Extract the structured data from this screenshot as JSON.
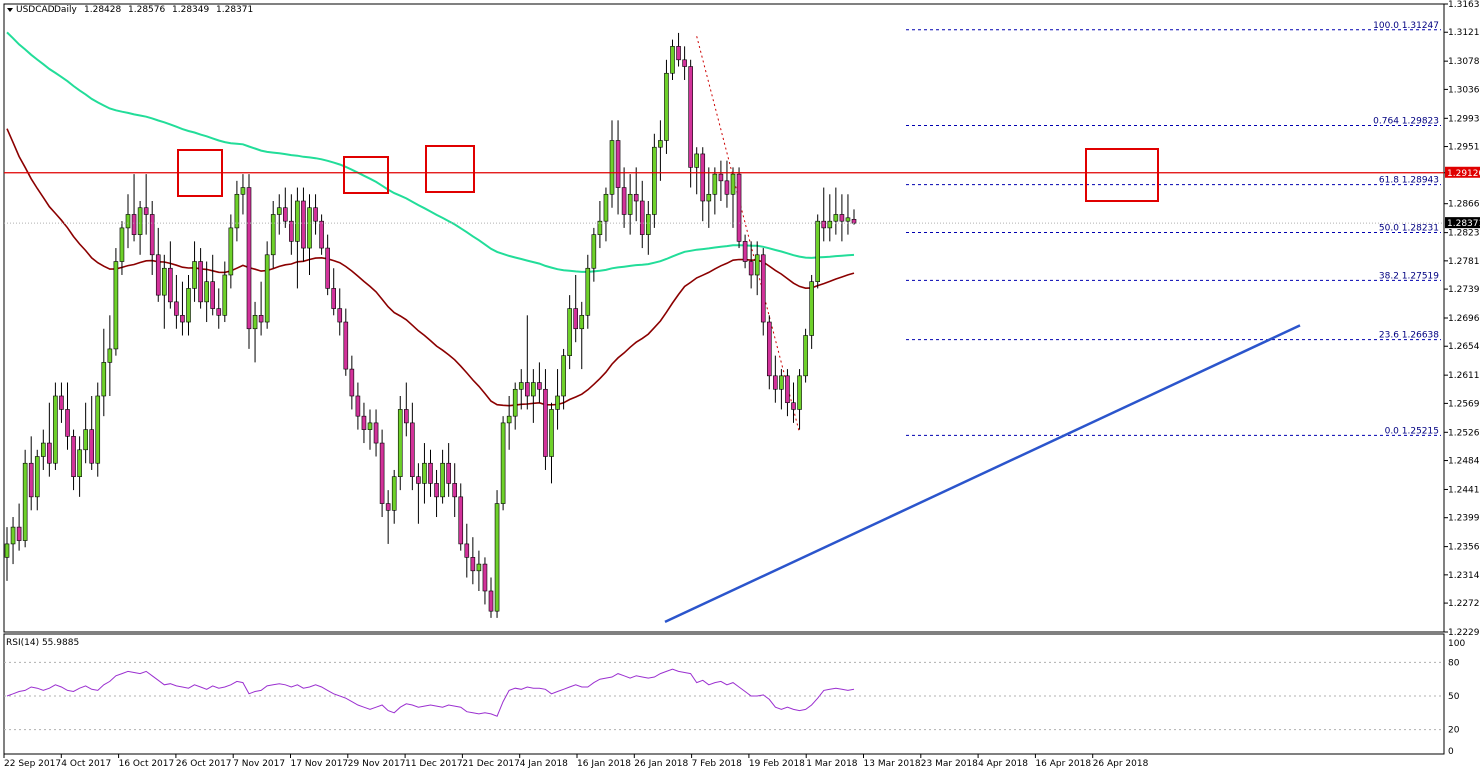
{
  "chart_data": {
    "type": "candlestick",
    "symbol": "USDCAD",
    "timeframe": "Daily",
    "header": {
      "open": "1.28428",
      "high": "1.28576",
      "low": "1.28349",
      "close": "1.28371"
    },
    "current_price_label": "1.28371",
    "resistance_label": "1.29120",
    "ylim": [
      1.2229,
      1.3163
    ],
    "y_ticks": [
      "1.31630",
      "1.31210",
      "1.30780",
      "1.30360",
      "1.29930",
      "1.29510",
      "1.29120",
      "1.28660",
      "1.28230",
      "1.27810",
      "1.27390",
      "1.26960",
      "1.26540",
      "1.26110",
      "1.25690",
      "1.25260",
      "1.24840",
      "1.24410",
      "1.23990",
      "1.23560",
      "1.23140",
      "1.22720",
      "1.22290"
    ],
    "x_ticks": [
      "22 Sep 2017",
      "4 Oct 2017",
      "16 Oct 2017",
      "26 Oct 2017",
      "7 Nov 2017",
      "17 Nov 2017",
      "29 Nov 2017",
      "11 Dec 2017",
      "21 Dec 2017",
      "4 Jan 2018",
      "16 Jan 2018",
      "26 Jan 2018",
      "7 Feb 2018",
      "19 Feb 2018",
      "1 Mar 2018",
      "13 Mar 2018",
      "23 Mar 2018",
      "4 Apr 2018",
      "16 Apr 2018",
      "26 Apr 2018"
    ],
    "fibonacci": [
      {
        "label": "100.0 1.31247",
        "value": 1.31247
      },
      {
        "label": "0.764 1.29823",
        "value": 1.29823
      },
      {
        "label": "61.8 1.28943",
        "value": 1.28943
      },
      {
        "label": "50.0 1.28231",
        "value": 1.28231
      },
      {
        "label": "38.2 1.27519",
        "value": 1.27519
      },
      {
        "label": "23.6 1.26638",
        "value": 1.26638
      },
      {
        "label": "0.0 1.25215",
        "value": 1.25215
      }
    ],
    "resistance": 1.2912,
    "current_price": 1.28371,
    "trendline": {
      "from": [
        0,
        1.2244
      ],
      "to": [
        128,
        1.2685
      ]
    },
    "fib_swing": {
      "from": [
        114,
        1.3115
      ],
      "to": [
        131,
        1.2525
      ]
    },
    "candles": [
      [
        1.234,
        1.2385,
        1.2305,
        1.236
      ],
      [
        1.236,
        1.24,
        1.233,
        1.2385
      ],
      [
        1.2385,
        1.242,
        1.235,
        1.2365
      ],
      [
        1.2365,
        1.25,
        1.2355,
        1.248
      ],
      [
        1.248,
        1.252,
        1.241,
        1.243
      ],
      [
        1.243,
        1.25,
        1.241,
        1.249
      ],
      [
        1.249,
        1.253,
        1.247,
        1.251
      ],
      [
        1.251,
        1.257,
        1.246,
        1.248
      ],
      [
        1.248,
        1.26,
        1.247,
        1.258
      ],
      [
        1.258,
        1.26,
        1.254,
        1.256
      ],
      [
        1.256,
        1.26,
        1.25,
        1.252
      ],
      [
        1.252,
        1.253,
        1.244,
        1.246
      ],
      [
        1.246,
        1.252,
        1.243,
        1.25
      ],
      [
        1.25,
        1.257,
        1.248,
        1.253
      ],
      [
        1.253,
        1.258,
        1.247,
        1.248
      ],
      [
        1.248,
        1.26,
        1.246,
        1.258
      ],
      [
        1.258,
        1.268,
        1.255,
        1.263
      ],
      [
        1.263,
        1.27,
        1.258,
        1.265
      ],
      [
        1.265,
        1.28,
        1.264,
        1.278
      ],
      [
        1.278,
        1.284,
        1.276,
        1.283
      ],
      [
        1.283,
        1.288,
        1.28,
        1.285
      ],
      [
        1.285,
        1.291,
        1.281,
        1.282
      ],
      [
        1.282,
        1.287,
        1.279,
        1.286
      ],
      [
        1.286,
        1.291,
        1.282,
        1.285
      ],
      [
        1.285,
        1.287,
        1.276,
        1.279
      ],
      [
        1.279,
        1.283,
        1.272,
        1.273
      ],
      [
        1.273,
        1.279,
        1.268,
        1.277
      ],
      [
        1.277,
        1.281,
        1.271,
        1.272
      ],
      [
        1.272,
        1.276,
        1.268,
        1.27
      ],
      [
        1.27,
        1.275,
        1.267,
        1.269
      ],
      [
        1.269,
        1.276,
        1.267,
        1.274
      ],
      [
        1.274,
        1.281,
        1.272,
        1.278
      ],
      [
        1.278,
        1.28,
        1.271,
        1.272
      ],
      [
        1.272,
        1.278,
        1.269,
        1.275
      ],
      [
        1.275,
        1.279,
        1.27,
        1.271
      ],
      [
        1.271,
        1.274,
        1.268,
        1.27
      ],
      [
        1.27,
        1.278,
        1.269,
        1.276
      ],
      [
        1.276,
        1.285,
        1.274,
        1.283
      ],
      [
        1.283,
        1.29,
        1.281,
        1.288
      ],
      [
        1.288,
        1.291,
        1.285,
        1.289
      ],
      [
        1.289,
        1.291,
        1.265,
        1.268
      ],
      [
        1.268,
        1.272,
        1.263,
        1.27
      ],
      [
        1.27,
        1.275,
        1.267,
        1.269
      ],
      [
        1.269,
        1.281,
        1.268,
        1.279
      ],
      [
        1.279,
        1.287,
        1.277,
        1.285
      ],
      [
        1.285,
        1.288,
        1.282,
        1.286
      ],
      [
        1.286,
        1.289,
        1.283,
        1.284
      ],
      [
        1.284,
        1.288,
        1.279,
        1.281
      ],
      [
        1.281,
        1.289,
        1.274,
        1.287
      ],
      [
        1.287,
        1.289,
        1.278,
        1.28
      ],
      [
        1.28,
        1.288,
        1.276,
        1.286
      ],
      [
        1.286,
        1.288,
        1.282,
        1.284
      ],
      [
        1.284,
        1.285,
        1.279,
        1.28
      ],
      [
        1.28,
        1.282,
        1.273,
        1.274
      ],
      [
        1.274,
        1.277,
        1.27,
        1.271
      ],
      [
        1.271,
        1.274,
        1.267,
        1.269
      ],
      [
        1.269,
        1.271,
        1.261,
        1.262
      ],
      [
        1.262,
        1.264,
        1.256,
        1.258
      ],
      [
        1.258,
        1.26,
        1.253,
        1.255
      ],
      [
        1.255,
        1.257,
        1.251,
        1.253
      ],
      [
        1.253,
        1.256,
        1.25,
        1.254
      ],
      [
        1.254,
        1.256,
        1.249,
        1.251
      ],
      [
        1.251,
        1.253,
        1.24,
        1.242
      ],
      [
        1.242,
        1.244,
        1.236,
        1.241
      ],
      [
        1.241,
        1.247,
        1.239,
        1.246
      ],
      [
        1.246,
        1.258,
        1.244,
        1.256
      ],
      [
        1.256,
        1.26,
        1.252,
        1.254
      ],
      [
        1.254,
        1.257,
        1.244,
        1.246
      ],
      [
        1.246,
        1.248,
        1.239,
        1.245
      ],
      [
        1.245,
        1.251,
        1.242,
        1.248
      ],
      [
        1.248,
        1.25,
        1.243,
        1.245
      ],
      [
        1.245,
        1.247,
        1.24,
        1.243
      ],
      [
        1.243,
        1.25,
        1.242,
        1.248
      ],
      [
        1.248,
        1.251,
        1.243,
        1.245
      ],
      [
        1.245,
        1.248,
        1.24,
        1.243
      ],
      [
        1.243,
        1.245,
        1.235,
        1.236
      ],
      [
        1.236,
        1.239,
        1.231,
        1.234
      ],
      [
        1.234,
        1.237,
        1.23,
        1.232
      ],
      [
        1.232,
        1.235,
        1.229,
        1.233
      ],
      [
        1.233,
        1.234,
        1.227,
        1.229
      ],
      [
        1.229,
        1.231,
        1.225,
        1.226
      ],
      [
        1.226,
        1.244,
        1.225,
        1.242
      ],
      [
        1.242,
        1.255,
        1.241,
        1.254
      ],
      [
        1.254,
        1.258,
        1.25,
        1.255
      ],
      [
        1.255,
        1.26,
        1.253,
        1.259
      ],
      [
        1.259,
        1.262,
        1.256,
        1.26
      ],
      [
        1.26,
        1.27,
        1.256,
        1.258
      ],
      [
        1.258,
        1.262,
        1.254,
        1.26
      ],
      [
        1.26,
        1.263,
        1.257,
        1.259
      ],
      [
        1.259,
        1.262,
        1.247,
        1.249
      ],
      [
        1.249,
        1.257,
        1.245,
        1.256
      ],
      [
        1.256,
        1.262,
        1.253,
        1.258
      ],
      [
        1.258,
        1.265,
        1.256,
        1.264
      ],
      [
        1.264,
        1.273,
        1.262,
        1.271
      ],
      [
        1.271,
        1.276,
        1.266,
        1.268
      ],
      [
        1.268,
        1.272,
        1.262,
        1.27
      ],
      [
        1.27,
        1.279,
        1.268,
        1.277
      ],
      [
        1.277,
        1.283,
        1.275,
        1.282
      ],
      [
        1.282,
        1.287,
        1.28,
        1.284
      ],
      [
        1.284,
        1.289,
        1.281,
        1.288
      ],
      [
        1.288,
        1.299,
        1.286,
        1.296
      ],
      [
        1.296,
        1.299,
        1.285,
        1.289
      ],
      [
        1.289,
        1.292,
        1.283,
        1.285
      ],
      [
        1.285,
        1.291,
        1.282,
        1.288
      ],
      [
        1.288,
        1.292,
        1.284,
        1.287
      ],
      [
        1.287,
        1.29,
        1.28,
        1.282
      ],
      [
        1.282,
        1.287,
        1.279,
        1.285
      ],
      [
        1.285,
        1.297,
        1.283,
        1.295
      ],
      [
        1.295,
        1.299,
        1.29,
        1.296
      ],
      [
        1.296,
        1.308,
        1.294,
        1.306
      ],
      [
        1.306,
        1.311,
        1.305,
        1.31
      ],
      [
        1.31,
        1.312,
        1.307,
        1.308
      ],
      [
        1.308,
        1.31,
        1.305,
        1.307
      ],
      [
        1.307,
        1.308,
        1.289,
        1.292
      ],
      [
        1.292,
        1.295,
        1.288,
        1.294
      ],
      [
        1.294,
        1.295,
        1.284,
        1.287
      ],
      [
        1.287,
        1.292,
        1.283,
        1.288
      ],
      [
        1.288,
        1.292,
        1.285,
        1.291
      ],
      [
        1.291,
        1.293,
        1.287,
        1.29
      ],
      [
        1.29,
        1.293,
        1.286,
        1.288
      ],
      [
        1.288,
        1.292,
        1.283,
        1.291
      ],
      [
        1.291,
        1.292,
        1.28,
        1.281
      ],
      [
        1.281,
        1.282,
        1.277,
        1.278
      ],
      [
        1.278,
        1.281,
        1.274,
        1.276
      ],
      [
        1.276,
        1.281,
        1.273,
        1.279
      ],
      [
        1.279,
        1.28,
        1.267,
        1.269
      ],
      [
        1.269,
        1.27,
        1.259,
        1.261
      ],
      [
        1.261,
        1.264,
        1.257,
        1.259
      ],
      [
        1.259,
        1.262,
        1.256,
        1.261
      ],
      [
        1.261,
        1.262,
        1.255,
        1.257
      ],
      [
        1.257,
        1.26,
        1.254,
        1.256
      ],
      [
        1.256,
        1.262,
        1.253,
        1.261
      ],
      [
        1.261,
        1.268,
        1.26,
        1.267
      ],
      [
        1.267,
        1.276,
        1.265,
        1.275
      ],
      [
        1.275,
        1.285,
        1.274,
        1.284
      ],
      [
        1.284,
        1.289,
        1.281,
        1.283
      ],
      [
        1.283,
        1.288,
        1.281,
        1.284
      ],
      [
        1.284,
        1.289,
        1.282,
        1.285
      ],
      [
        1.285,
        1.288,
        1.281,
        1.284
      ],
      [
        1.284,
        1.288,
        1.282,
        1.2845
      ],
      [
        1.28428,
        1.28576,
        1.28349,
        1.28371
      ]
    ],
    "rsi": {
      "label": "RSI(14) 55.9885",
      "levels": [
        "100",
        "80",
        "50",
        "20",
        "0"
      ],
      "values": [
        50,
        52,
        54,
        55,
        58,
        57,
        55,
        57,
        60,
        58,
        55,
        54,
        57,
        59,
        56,
        55,
        60,
        63,
        68,
        70,
        72,
        71,
        70,
        72,
        68,
        64,
        60,
        61,
        59,
        58,
        57,
        60,
        58,
        56,
        59,
        57,
        58,
        60,
        63,
        62,
        52,
        54,
        55,
        59,
        60,
        61,
        60,
        58,
        60,
        57,
        58,
        60,
        58,
        55,
        52,
        50,
        48,
        45,
        42,
        40,
        38,
        40,
        42,
        37,
        35,
        40,
        43,
        42,
        40,
        41,
        42,
        41,
        40,
        42,
        41,
        40,
        36,
        35,
        34,
        35,
        34,
        32,
        45,
        55,
        57,
        56,
        58,
        57,
        57,
        56,
        52,
        54,
        56,
        58,
        60,
        58,
        58,
        62,
        65,
        66,
        67,
        70,
        68,
        66,
        68,
        67,
        66,
        67,
        70,
        72,
        74,
        72,
        71,
        70,
        62,
        64,
        60,
        62,
        63,
        60,
        62,
        58,
        54,
        50,
        50,
        51,
        47,
        40,
        38,
        40,
        38,
        37,
        38,
        42,
        48,
        55,
        56,
        57,
        56,
        55,
        56
      ]
    }
  }
}
